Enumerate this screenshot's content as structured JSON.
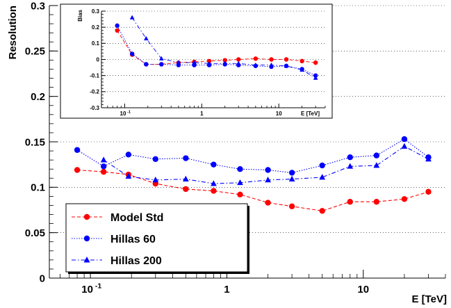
{
  "chart_data": [
    {
      "type": "line",
      "xscale": "log",
      "xlim": [
        0.05,
        40
      ],
      "ylim": [
        0,
        0.3
      ],
      "xlabel": "E [TeV]",
      "ylabel": "Resolution",
      "grid": "horizontal dotted",
      "legend_placement": "bottom-left",
      "y_ticks": [
        "0",
        "0.05",
        "0.1",
        "0.15",
        "0.2",
        "0.25",
        "0.3"
      ],
      "x_ticks": [
        {
          "value": 0.1,
          "base": "10",
          "exp": "-1"
        },
        {
          "value": 1,
          "label": "1"
        },
        {
          "value": 10,
          "label": "10"
        }
      ],
      "series": [
        {
          "name": "Model Std",
          "color": "#ff0000",
          "marker": "circle",
          "line": "dashed",
          "x": [
            0.08,
            0.125,
            0.19,
            0.3,
            0.5,
            0.8,
            1.25,
            2,
            3,
            5,
            8,
            12.5,
            20,
            30
          ],
          "values": [
            0.119,
            0.117,
            0.114,
            0.104,
            0.098,
            0.096,
            0.092,
            0.083,
            0.079,
            0.074,
            0.084,
            0.084,
            0.087,
            0.095
          ]
        },
        {
          "name": "Hillas 60",
          "color": "#0000ff",
          "marker": "circle",
          "line": "dotted",
          "x": [
            0.08,
            0.125,
            0.19,
            0.3,
            0.5,
            0.8,
            1.25,
            2,
            3,
            5,
            8,
            12.5,
            20,
            30
          ],
          "values": [
            0.141,
            0.123,
            0.136,
            0.131,
            0.132,
            0.125,
            0.12,
            0.119,
            0.116,
            0.124,
            0.133,
            0.135,
            0.153,
            0.133
          ]
        },
        {
          "name": "Hillas 200",
          "color": "#0000ff",
          "marker": "triangle",
          "line": "dashdot",
          "x": [
            0.125,
            0.19,
            0.3,
            0.5,
            0.8,
            1.25,
            2,
            3,
            5,
            8,
            12.5,
            20,
            30
          ],
          "values": [
            0.13,
            0.112,
            0.108,
            0.109,
            0.104,
            0.105,
            0.108,
            0.109,
            0.111,
            0.123,
            0.124,
            0.145,
            0.131
          ]
        }
      ]
    },
    {
      "type": "line",
      "xscale": "log",
      "xlim": [
        0.05,
        40
      ],
      "ylim": [
        -0.3,
        0.3
      ],
      "xlabel": "E [TeV]",
      "ylabel": "Bias",
      "grid": "horizontal dotted",
      "y_ticks": [
        "-0.3",
        "-0.2",
        "-0.1",
        "0",
        "0.1",
        "0.2",
        "0.3"
      ],
      "x_ticks": [
        {
          "value": 0.1,
          "base": "10",
          "exp": "-1"
        },
        {
          "value": 1,
          "label": "1"
        },
        {
          "value": 10,
          "label": "10"
        }
      ],
      "series": [
        {
          "name": "Model Std",
          "color": "#ff0000",
          "marker": "circle",
          "line": "dashed",
          "x": [
            0.08,
            0.125,
            0.19,
            0.3,
            0.5,
            0.8,
            1.25,
            2,
            3,
            5,
            8,
            12.5,
            20,
            30
          ],
          "values": [
            0.18,
            0.03,
            -0.03,
            -0.03,
            -0.02,
            -0.015,
            -0.01,
            -0.005,
            0.0,
            0.005,
            0.0,
            0.0,
            -0.01,
            -0.02
          ]
        },
        {
          "name": "Hillas 60",
          "color": "#0000ff",
          "marker": "circle",
          "line": "dotted",
          "x": [
            0.08,
            0.125,
            0.19,
            0.3,
            0.5,
            0.8,
            1.25,
            2,
            3,
            5,
            8,
            12.5,
            20,
            30
          ],
          "values": [
            0.21,
            0.035,
            -0.03,
            -0.03,
            -0.035,
            -0.035,
            -0.035,
            -0.03,
            -0.035,
            -0.04,
            -0.045,
            -0.04,
            -0.06,
            -0.1
          ]
        },
        {
          "name": "Hillas 200",
          "color": "#0000ff",
          "marker": "triangle",
          "line": "dashdot",
          "x": [
            0.125,
            0.19,
            0.3,
            0.5,
            0.8,
            1.25,
            2,
            3,
            5,
            8,
            12.5,
            20,
            30
          ],
          "values": [
            0.26,
            0.13,
            0.005,
            -0.02,
            -0.02,
            -0.025,
            -0.025,
            -0.025,
            -0.035,
            -0.035,
            -0.04,
            -0.065,
            -0.115
          ]
        }
      ]
    }
  ]
}
